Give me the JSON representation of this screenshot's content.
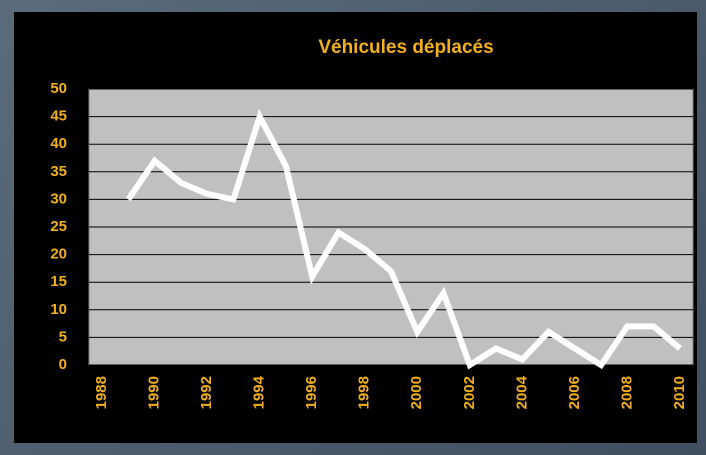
{
  "chart_data": {
    "type": "line",
    "title": "Véhicules déplacés",
    "categories": [
      "1988",
      null,
      "1990",
      null,
      "1992",
      null,
      "1994",
      null,
      "1996",
      null,
      "1998",
      null,
      "2000",
      null,
      "2002",
      null,
      "2004",
      null,
      "2006",
      null,
      "2008",
      null,
      "2010"
    ],
    "values": [
      null,
      30,
      37,
      33,
      31,
      30,
      45,
      36,
      16,
      24,
      21,
      17,
      6,
      13,
      0,
      3,
      1,
      6,
      3,
      0,
      7,
      7,
      3
    ],
    "color": "#ffffff",
    "ylim": [
      0,
      50
    ],
    "yticks": [
      0,
      5,
      10,
      15,
      20,
      25,
      30,
      35,
      40,
      45,
      50
    ],
    "grid": true
  }
}
